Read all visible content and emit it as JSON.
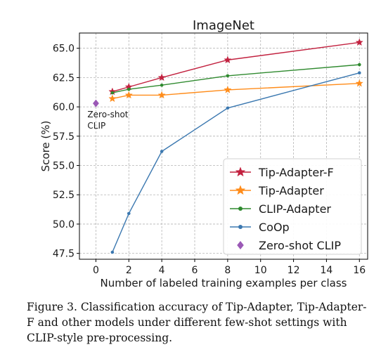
{
  "chart_data": {
    "type": "line",
    "title": "ImageNet",
    "xlabel": "Number of labeled training examples per class",
    "ylabel": "Score (%)",
    "xlim": [
      -1,
      16.5
    ],
    "ylim": [
      47,
      66.3
    ],
    "xticks": [
      0,
      2,
      4,
      6,
      8,
      10,
      12,
      14,
      16
    ],
    "yticks": [
      47.5,
      50.0,
      52.5,
      55.0,
      57.5,
      60.0,
      62.5,
      65.0
    ],
    "grid": true,
    "legend_position": "lower-right",
    "series": [
      {
        "name": "Tip-Adapter-F",
        "color": "#c2213f",
        "marker": "star",
        "x": [
          1,
          2,
          4,
          8,
          16
        ],
        "y": [
          61.3,
          61.7,
          62.5,
          64.0,
          65.5
        ]
      },
      {
        "name": "Tip-Adapter",
        "color": "#ff8c1a",
        "marker": "star",
        "x": [
          1,
          2,
          4,
          8,
          16
        ],
        "y": [
          60.7,
          61.0,
          61.0,
          61.45,
          62.0
        ]
      },
      {
        "name": "CLIP-Adapter",
        "color": "#2f8a2f",
        "marker": "dot",
        "x": [
          1,
          2,
          4,
          8,
          16
        ],
        "y": [
          61.2,
          61.5,
          61.85,
          62.65,
          63.6
        ]
      },
      {
        "name": "CoOp",
        "color": "#3b78b0",
        "marker": "dot",
        "x": [
          1,
          2,
          4,
          8,
          16
        ],
        "y": [
          47.6,
          50.9,
          56.2,
          59.9,
          62.9
        ]
      },
      {
        "name": "Zero-shot CLIP",
        "color": "#9b59b6",
        "marker": "diamond",
        "x": [
          0
        ],
        "y": [
          60.3
        ]
      }
    ],
    "annotations": [
      {
        "text_lines": [
          "Zero-shot",
          "CLIP"
        ],
        "x": 0,
        "y": 60.3
      }
    ]
  },
  "caption": {
    "text": "Figure 3.  Classification accuracy of Tip-Adapter, Tip-Adapter-F and other models under different few-shot settings with CLIP-style pre-processing."
  }
}
